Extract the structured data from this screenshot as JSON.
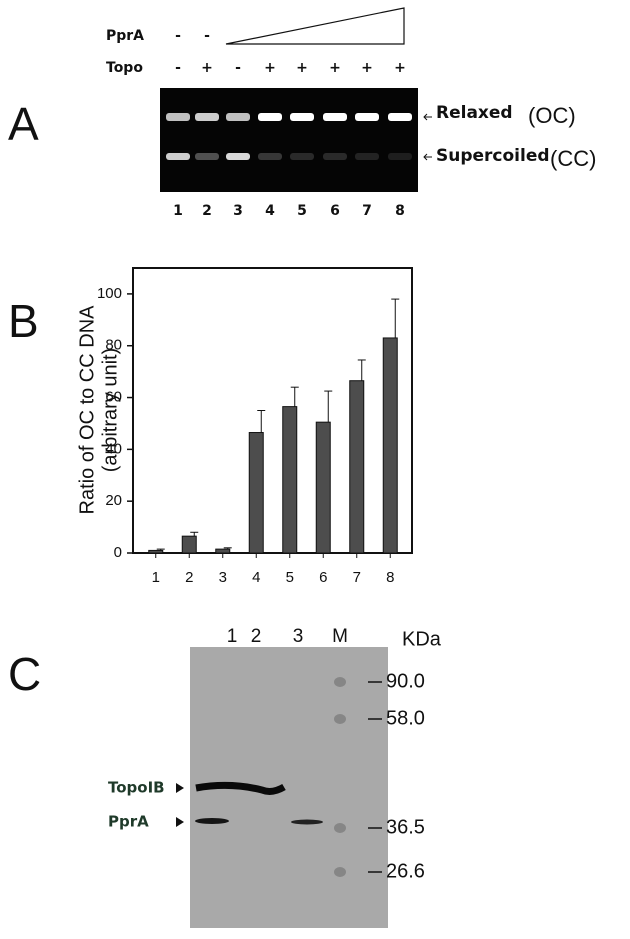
{
  "panel_labels": [
    "A",
    "B",
    "C"
  ],
  "gel": {
    "pprA_label": "PprA",
    "topo_label": "Topo",
    "pprA": [
      "-",
      "-"
    ],
    "topo": [
      "-",
      "+",
      "-",
      "+",
      "+",
      "+",
      "+",
      "+"
    ],
    "lanes": [
      "1",
      "2",
      "3",
      "4",
      "5",
      "6",
      "7",
      "8"
    ],
    "bands": [
      {
        "label": "Relaxed",
        "form": "(OC)"
      },
      {
        "label": "Supercoiled",
        "form": "(CC)"
      }
    ]
  },
  "chart_data": {
    "type": "bar",
    "y_label": "Ratio of OC to CC DNA",
    "y_sublabel": "(arbitrary unit)",
    "categories": [
      "1",
      "2",
      "3",
      "4",
      "5",
      "6",
      "7",
      "8"
    ],
    "values": [
      1,
      6.5,
      1.5,
      46.5,
      56.5,
      50.5,
      66.5,
      83
    ],
    "errors": [
      0.5,
      1.5,
      0.5,
      8.5,
      7.5,
      12,
      8,
      15
    ],
    "color": "#4d4d4d",
    "ylim": [
      0,
      110
    ],
    "yticks": [
      0,
      20,
      40,
      60,
      80,
      100
    ]
  },
  "blot": {
    "lanes": [
      "1",
      "2",
      "3",
      "M"
    ],
    "unit": "KDa",
    "markers": [
      "90.0",
      "58.0",
      "36.5",
      "26.6"
    ],
    "bands": [
      "TopoIB",
      "PprA"
    ]
  }
}
